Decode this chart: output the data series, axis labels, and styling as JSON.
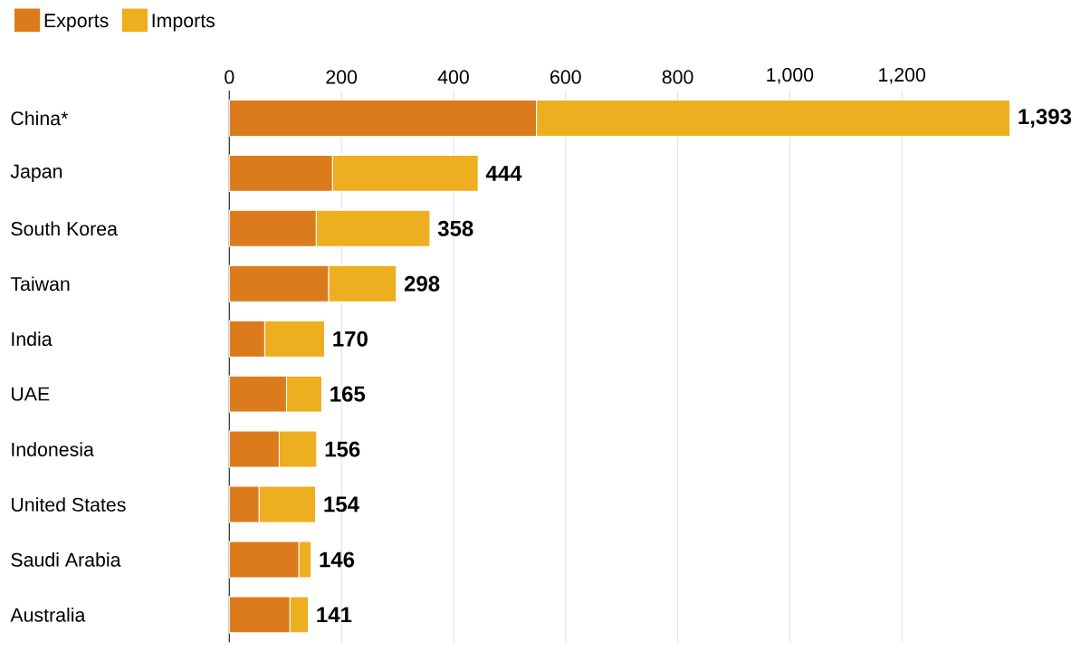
{
  "chart_data": {
    "type": "bar",
    "orientation": "horizontal",
    "stacked": true,
    "categories": [
      "China*",
      "Japan",
      "South Korea",
      "Taiwan",
      "India",
      "UAE",
      "Indonesia",
      "United States",
      "Saudi Arabia",
      "Australia"
    ],
    "series": [
      {
        "name": "Exports",
        "color": "#dc7b1c",
        "values": [
          548,
          184,
          155,
          177,
          63,
          102,
          89,
          53,
          124,
          108
        ]
      },
      {
        "name": "Imports",
        "color": "#edae1f",
        "values": [
          845,
          260,
          203,
          121,
          107,
          63,
          67,
          101,
          22,
          33
        ]
      }
    ],
    "totals": [
      "1,393",
      "444",
      "358",
      "298",
      "170",
      "165",
      "156",
      "154",
      "146",
      "141"
    ],
    "xlim": [
      0,
      1400
    ],
    "xticks": [
      0,
      200,
      400,
      600,
      {
        "value": 800,
        "label": "800"
      },
      {
        "value": 1000,
        "label": "1,000"
      },
      {
        "value": 1200,
        "label": "1,200"
      }
    ],
    "grid": "x",
    "legend": "top left"
  }
}
